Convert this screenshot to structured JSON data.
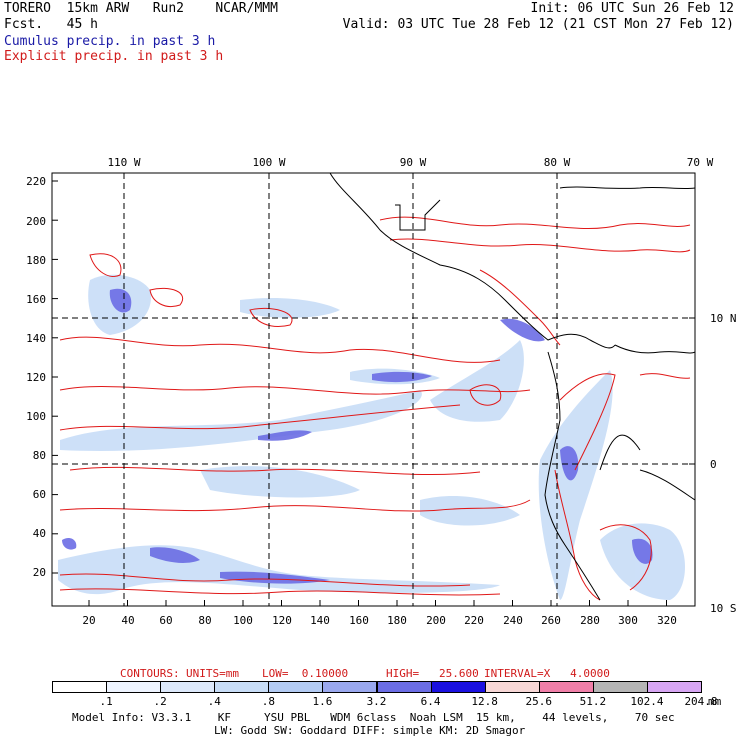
{
  "header": {
    "model_line": "TORERO  15km ARW   Run2    NCAR/MMM",
    "init": "Init: 06 UTC Sun 26 Feb 12",
    "fcst_line": "Fcst.   45 h",
    "valid": "Valid: 03 UTC Tue 28 Feb 12 (21 CST Mon 27 Feb 12)",
    "cumulus": "Cumulus precip. in past 3 h",
    "explicit": "Explicit precip. in past 3 h"
  },
  "axes": {
    "top_lon": [
      "110 W",
      "100 W",
      "90 W",
      "80 W",
      "70 W"
    ],
    "right_lat": [
      "10 N",
      "0",
      "10 S"
    ],
    "left_y": [
      "220",
      "200",
      "180",
      "160",
      "140",
      "120",
      "100",
      "80",
      "60",
      "40",
      "20"
    ],
    "bottom_x": [
      "20",
      "40",
      "60",
      "80",
      "100",
      "120",
      "140",
      "160",
      "180",
      "200",
      "220",
      "240",
      "260",
      "280",
      "300",
      "320"
    ]
  },
  "contours": {
    "label": "CONTOURS:",
    "units": "UNITS=mm",
    "low": "LOW=  0.10000",
    "high": "HIGH=   25.600",
    "interval": "INTERVAL=X   4.0000"
  },
  "colorbar": {
    "labels": [
      ".1",
      ".2",
      ".4",
      ".8",
      "1.6",
      "3.2",
      "6.4",
      "12.8",
      "25.6",
      "51.2",
      "102.4",
      "204.8"
    ],
    "units": "mm",
    "colors": [
      "#ffffff",
      "#eef4ff",
      "#dde9fb",
      "#c8ddf7",
      "#b3cbf3",
      "#9aa8ee",
      "#6b6de4",
      "#1a10e0",
      "#f7d7d6",
      "#f07fa8",
      "#b5b5b5",
      "#d7a6f3"
    ]
  },
  "footer": {
    "line1": "Model Info: V3.3.1    KF     YSU PBL   WDM 6class  Noah LSM  15 km,    44 levels,    70 sec",
    "line2": "LW: Godd SW: Goddard DIFF: simple KM: 2D Smagor"
  }
}
